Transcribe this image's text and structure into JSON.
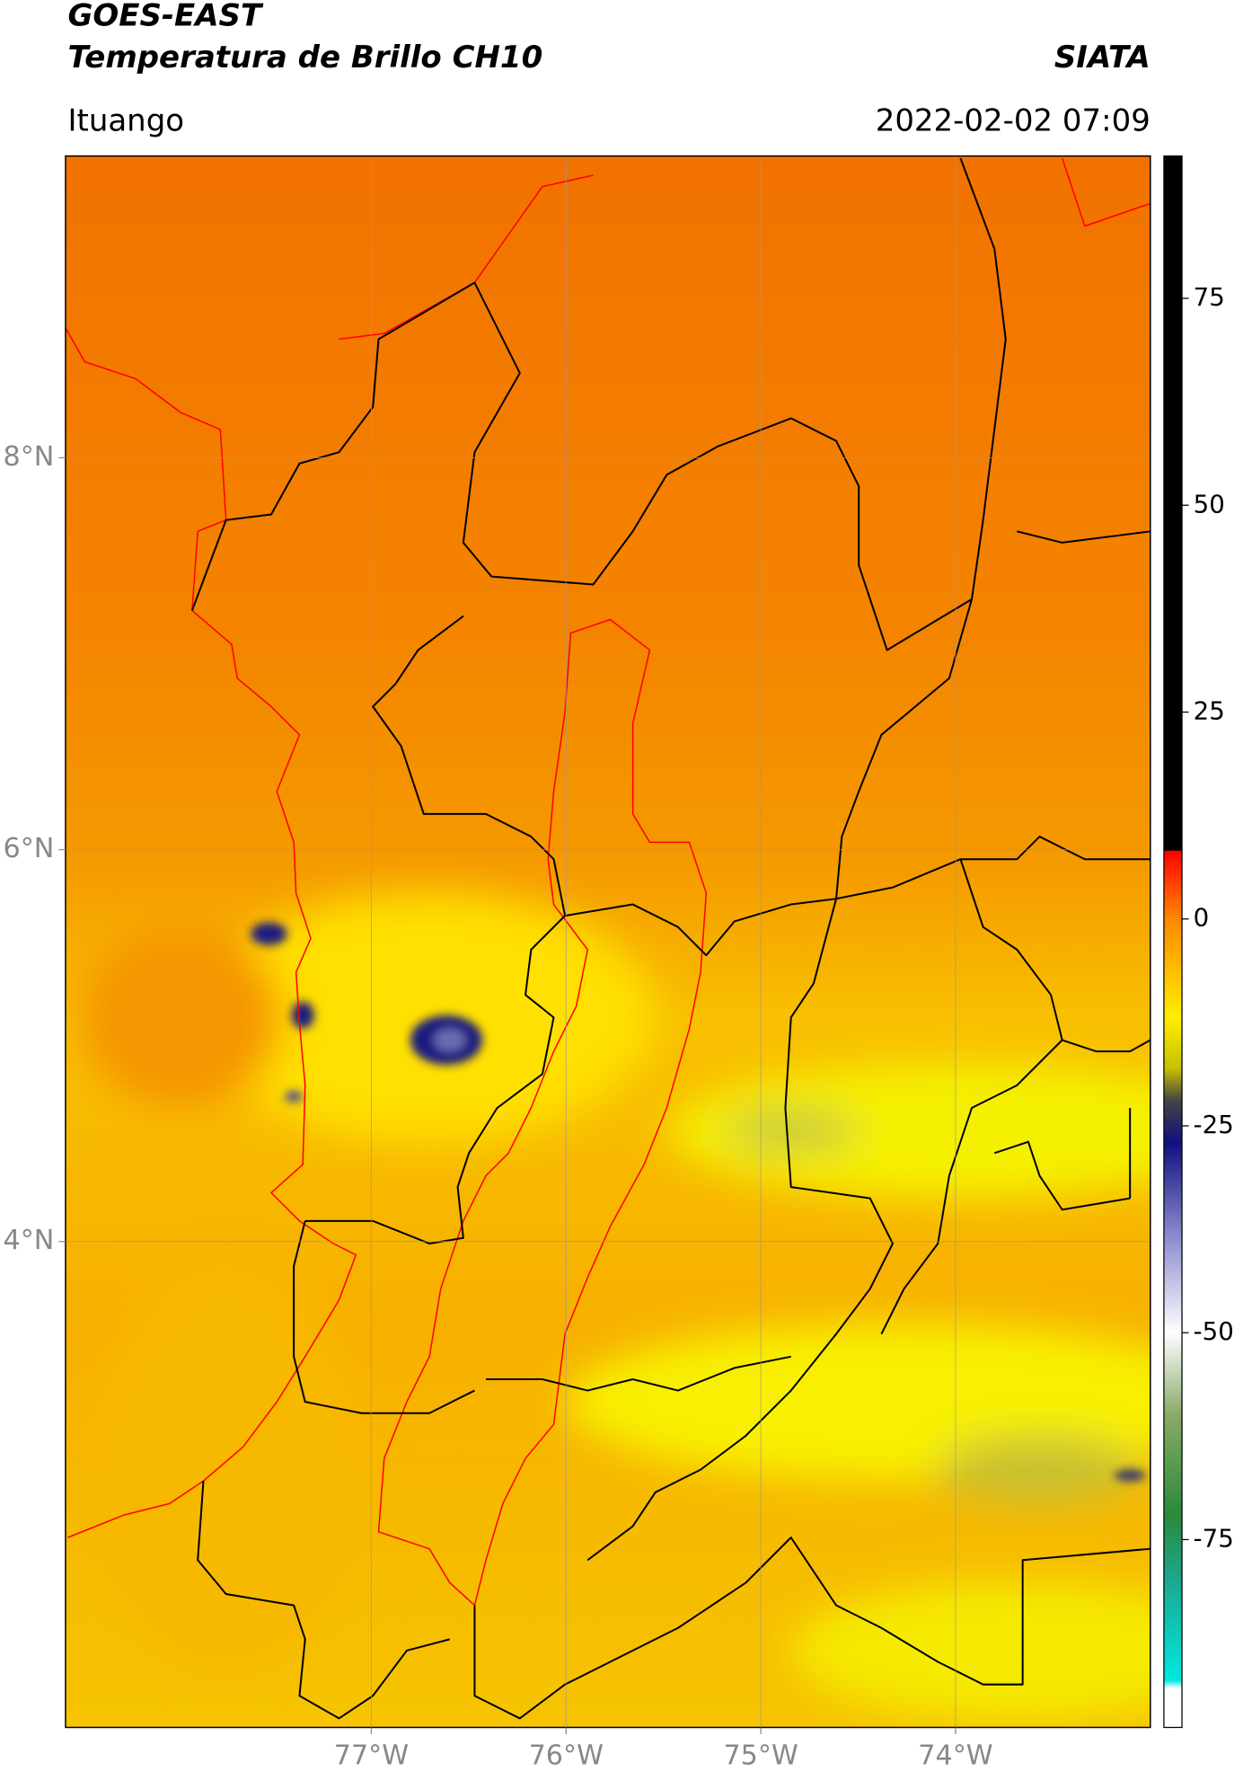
{
  "header": {
    "title_line1": "GOES-EAST",
    "title_line2": "Temperatura de Brillo CH10",
    "source": "SIATA",
    "location": "Ituango",
    "datetime": "2022-02-02 07:09"
  },
  "map": {
    "lonlim": [
      -78.57,
      -73.0
    ],
    "latlim": [
      1.52,
      9.54
    ],
    "lon_ticks": [
      {
        "value": -77,
        "label": "77°W"
      },
      {
        "value": -76,
        "label": "76°W"
      },
      {
        "value": -75,
        "label": "75°W"
      },
      {
        "value": -74,
        "label": "74°W"
      }
    ],
    "lat_ticks": [
      {
        "value": 8,
        "label": "8°N"
      },
      {
        "value": 6,
        "label": "6°N"
      },
      {
        "value": 4,
        "label": "4°N"
      }
    ]
  },
  "colorbar": {
    "lim": [
      -97.7,
      92.2
    ],
    "ticks": [
      75,
      50,
      25,
      0,
      -25,
      -50,
      -75
    ],
    "stops": [
      {
        "value": 92.2,
        "color": "#000000"
      },
      {
        "value": 8.3,
        "color": "#000000"
      },
      {
        "value": 8.2,
        "color": "#ff0000"
      },
      {
        "value": 0,
        "color": "#ff8800"
      },
      {
        "value": -12,
        "color": "#ffee00"
      },
      {
        "value": -18,
        "color": "#c8c000"
      },
      {
        "value": -22,
        "color": "#444444"
      },
      {
        "value": -27,
        "color": "#101080"
      },
      {
        "value": -38,
        "color": "#8888cc"
      },
      {
        "value": -50,
        "color": "#ffffff"
      },
      {
        "value": -60,
        "color": "#88aa66"
      },
      {
        "value": -72,
        "color": "#2a8a3a"
      },
      {
        "value": -80,
        "color": "#1ca890"
      },
      {
        "value": -92,
        "color": "#00e8e0"
      },
      {
        "value": -93,
        "color": "#ffffff"
      },
      {
        "value": -97.7,
        "color": "#ffffff"
      }
    ]
  }
}
